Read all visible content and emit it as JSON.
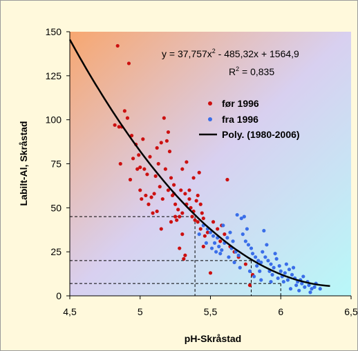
{
  "chart_data": {
    "type": "scatter",
    "xlabel": "pH-Skråstad",
    "ylabel": "Labilt-Al, Skråstad",
    "xlim": [
      4.5,
      6.5
    ],
    "ylim": [
      0,
      150
    ],
    "x_ticks": [
      "4,5",
      "5",
      "5,5",
      "6",
      "6,5"
    ],
    "y_ticks": [
      "0",
      "25",
      "50",
      "75",
      "100",
      "125",
      "150"
    ],
    "x_tick_values": [
      4.5,
      5,
      5.5,
      6,
      6.5
    ],
    "y_tick_values": [
      0,
      25,
      50,
      75,
      100,
      125,
      150
    ],
    "equation": "y = 37,757x",
    "equation_sup": "2",
    "equation_rest": " - 485,32x + 1564,9",
    "r2_label": "R",
    "r2_sup": "2",
    "r2_rest": " = 0,835",
    "legend_position": "top-right",
    "series": [
      {
        "name": "før 1996",
        "color": "#cc1010",
        "points": [
          [
            4.84,
            142
          ],
          [
            4.92,
            132
          ],
          [
            4.82,
            97
          ],
          [
            4.85,
            96
          ],
          [
            4.87,
            96
          ],
          [
            4.91,
            101
          ],
          [
            4.89,
            105
          ],
          [
            4.94,
            91
          ],
          [
            4.97,
            86
          ],
          [
            4.99,
            80
          ],
          [
            5.02,
            89
          ],
          [
            4.95,
            78
          ],
          [
            4.86,
            75
          ],
          [
            5.0,
            73
          ],
          [
            5.03,
            72
          ],
          [
            4.98,
            72
          ],
          [
            4.93,
            66
          ],
          [
            5.0,
            60
          ],
          [
            5.04,
            57
          ],
          [
            5.01,
            55
          ],
          [
            5.06,
            52
          ],
          [
            5.08,
            56
          ],
          [
            5.1,
            58
          ],
          [
            5.05,
            69
          ],
          [
            5.07,
            79
          ],
          [
            5.13,
            75
          ],
          [
            5.12,
            84
          ],
          [
            5.15,
            87
          ],
          [
            5.17,
            101
          ],
          [
            5.2,
            93
          ],
          [
            5.19,
            88
          ],
          [
            5.21,
            82
          ],
          [
            5.18,
            72
          ],
          [
            5.22,
            67
          ],
          [
            5.24,
            63
          ],
          [
            5.2,
            60
          ],
          [
            5.16,
            55
          ],
          [
            5.23,
            57
          ],
          [
            5.25,
            52
          ],
          [
            5.27,
            49
          ],
          [
            5.3,
            47
          ],
          [
            5.28,
            45
          ],
          [
            5.26,
            43
          ],
          [
            5.24,
            58
          ],
          [
            5.29,
            60
          ],
          [
            5.32,
            58
          ],
          [
            5.35,
            55
          ],
          [
            5.33,
            52
          ],
          [
            5.36,
            50
          ],
          [
            5.38,
            48
          ],
          [
            5.37,
            45
          ],
          [
            5.39,
            43
          ],
          [
            5.41,
            42
          ],
          [
            5.3,
            72
          ],
          [
            5.33,
            76
          ],
          [
            5.38,
            67
          ],
          [
            5.42,
            70
          ],
          [
            5.4,
            54
          ],
          [
            5.43,
            52
          ],
          [
            5.44,
            47
          ],
          [
            5.45,
            44
          ],
          [
            5.43,
            38
          ],
          [
            5.46,
            34
          ],
          [
            5.3,
            35
          ],
          [
            5.28,
            27
          ],
          [
            5.32,
            23
          ],
          [
            5.31,
            21
          ],
          [
            5.5,
            13
          ],
          [
            5.62,
            66
          ],
          [
            5.58,
            40
          ],
          [
            5.55,
            38
          ],
          [
            5.52,
            42
          ],
          [
            5.6,
            35
          ],
          [
            5.57,
            31
          ],
          [
            5.64,
            28
          ],
          [
            5.67,
            25
          ],
          [
            5.7,
            22
          ],
          [
            5.75,
            18
          ],
          [
            5.78,
            6
          ],
          [
            5.8,
            12
          ],
          [
            5.45,
            28
          ],
          [
            5.48,
            36
          ],
          [
            5.25,
            45
          ],
          [
            5.22,
            42
          ],
          [
            5.15,
            38
          ],
          [
            5.12,
            48
          ],
          [
            5.09,
            47
          ],
          [
            5.14,
            62
          ],
          [
            5.11,
            68
          ],
          [
            5.35,
            60
          ],
          [
            5.41,
            57
          ]
        ]
      },
      {
        "name": "fra 1996",
        "color": "#3a6ee8",
        "points": [
          [
            5.45,
            40
          ],
          [
            5.48,
            38
          ],
          [
            5.5,
            36
          ],
          [
            5.52,
            34
          ],
          [
            5.55,
            33
          ],
          [
            5.53,
            30
          ],
          [
            5.56,
            28
          ],
          [
            5.58,
            26
          ],
          [
            5.6,
            30
          ],
          [
            5.62,
            33
          ],
          [
            5.64,
            36
          ],
          [
            5.66,
            31
          ],
          [
            5.65,
            27
          ],
          [
            5.68,
            25
          ],
          [
            5.7,
            23
          ],
          [
            5.69,
            46
          ],
          [
            5.72,
            44
          ],
          [
            5.74,
            45
          ],
          [
            5.76,
            38
          ],
          [
            5.73,
            35
          ],
          [
            5.75,
            31
          ],
          [
            5.77,
            29
          ],
          [
            5.79,
            27
          ],
          [
            5.8,
            24
          ],
          [
            5.82,
            22
          ],
          [
            5.84,
            20
          ],
          [
            5.86,
            19
          ],
          [
            5.88,
            37
          ],
          [
            5.9,
            29
          ],
          [
            5.87,
            25
          ],
          [
            5.89,
            22
          ],
          [
            5.91,
            20
          ],
          [
            5.93,
            18
          ],
          [
            5.95,
            16
          ],
          [
            5.92,
            14
          ],
          [
            5.94,
            12
          ],
          [
            5.97,
            21
          ],
          [
            5.99,
            17
          ],
          [
            6.0,
            14
          ],
          [
            6.01,
            11
          ],
          [
            6.03,
            13
          ],
          [
            6.05,
            9
          ],
          [
            6.06,
            15
          ],
          [
            6.08,
            12
          ],
          [
            6.1,
            10
          ],
          [
            6.12,
            8
          ],
          [
            6.11,
            6
          ],
          [
            6.14,
            9
          ],
          [
            6.15,
            7
          ],
          [
            6.17,
            5
          ],
          [
            6.19,
            8
          ],
          [
            6.2,
            6
          ],
          [
            6.22,
            4
          ],
          [
            6.25,
            7
          ],
          [
            6.28,
            4
          ],
          [
            6.02,
            8
          ],
          [
            5.98,
            10
          ],
          [
            5.96,
            24
          ],
          [
            6.04,
            18
          ],
          [
            5.85,
            14
          ],
          [
            5.83,
            17
          ],
          [
            5.81,
            11
          ],
          [
            5.78,
            14
          ],
          [
            5.71,
            16
          ],
          [
            5.67,
            19
          ],
          [
            5.63,
            22
          ],
          [
            5.59,
            40
          ],
          [
            5.57,
            24
          ],
          [
            5.54,
            25
          ],
          [
            5.51,
            27
          ],
          [
            5.47,
            30
          ],
          [
            5.42,
            35
          ],
          [
            6.07,
            4
          ],
          [
            6.13,
            3
          ],
          [
            6.16,
            11
          ],
          [
            6.21,
            2
          ],
          [
            6.24,
            5
          ],
          [
            6.09,
            16
          ],
          [
            5.93,
            8
          ],
          [
            5.86,
            9
          ]
        ]
      },
      {
        "name": "Poly. (1980-2006)",
        "color": "#000000",
        "coefficients": [
          37.757,
          -485.32,
          1564.9
        ],
        "x_range": [
          4.5,
          6.35
        ]
      }
    ],
    "guide_lines": [
      {
        "x": 5.39,
        "y": 45
      },
      {
        "x": 5.79,
        "y": 20
      },
      {
        "x": 6.0,
        "y": 7
      }
    ]
  }
}
